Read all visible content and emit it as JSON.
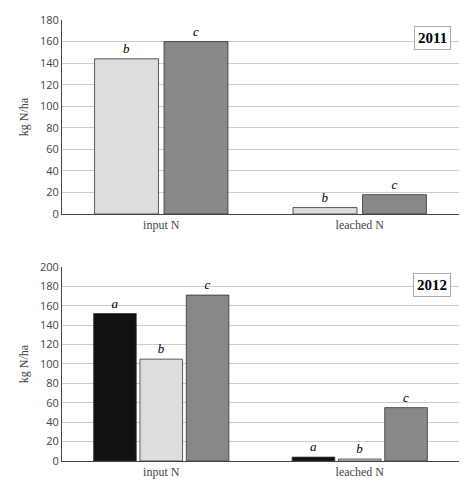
{
  "chart_data": [
    {
      "type": "bar",
      "annotations": [
        "2011"
      ],
      "ylabel": "kg N/ha",
      "categories": [
        "input N",
        "leached N"
      ],
      "series": [
        {
          "name": "b",
          "color": "#dddddd",
          "values": [
            144,
            6
          ]
        },
        {
          "name": "c",
          "color": "#888888",
          "values": [
            160,
            18
          ]
        }
      ],
      "ylim": [
        0,
        180
      ],
      "yticks": [
        0,
        20,
        40,
        60,
        80,
        100,
        120,
        140,
        160,
        180
      ],
      "grid": true
    },
    {
      "type": "bar",
      "annotations": [
        "2012"
      ],
      "ylabel": "kg N/ha",
      "categories": [
        "input N",
        "leached N"
      ],
      "series": [
        {
          "name": "a",
          "color": "#111111",
          "values": [
            152,
            4
          ]
        },
        {
          "name": "b",
          "color": "#dddddd",
          "values": [
            105,
            2
          ]
        },
        {
          "name": "c",
          "color": "#888888",
          "values": [
            171,
            55
          ]
        }
      ],
      "ylim": [
        0,
        200
      ],
      "yticks": [
        0,
        20,
        40,
        60,
        80,
        100,
        120,
        140,
        160,
        180,
        200
      ],
      "grid": true
    }
  ]
}
